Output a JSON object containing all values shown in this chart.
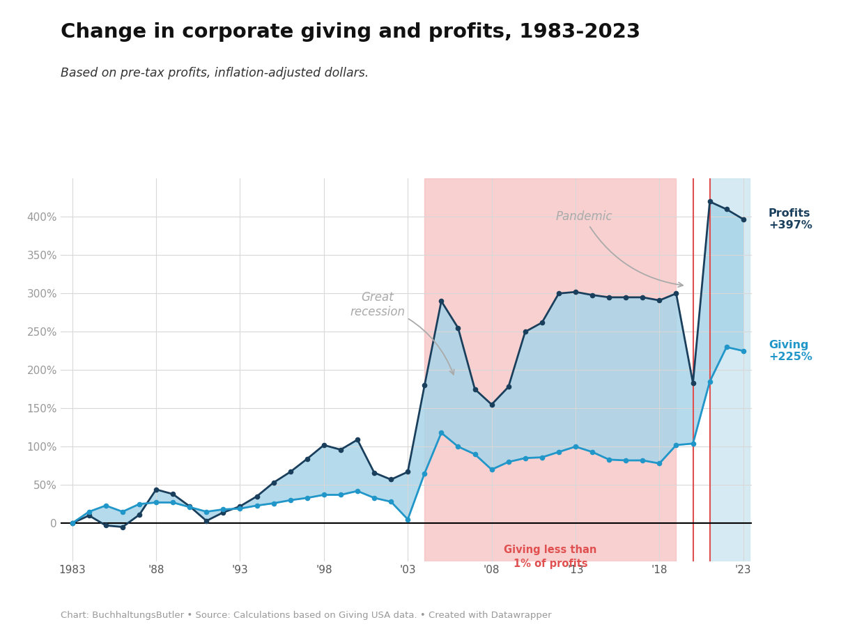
{
  "title": "Change in corporate giving and profits, 1983-2023",
  "subtitle": "Based on pre-tax profits, inflation-adjusted dollars.",
  "footer": "Chart: BuchhaltungsButler • Source: Calculations based on Giving USA data. • Created with Datawrapper",
  "years": [
    1983,
    1984,
    1985,
    1986,
    1987,
    1988,
    1989,
    1990,
    1991,
    1992,
    1993,
    1994,
    1995,
    1996,
    1997,
    1998,
    1999,
    2000,
    2001,
    2002,
    2003,
    2004,
    2005,
    2006,
    2007,
    2008,
    2009,
    2010,
    2011,
    2012,
    2013,
    2014,
    2015,
    2016,
    2017,
    2018,
    2019,
    2020,
    2021,
    2022,
    2023
  ],
  "profits": [
    0,
    10,
    -3,
    -5,
    11,
    44,
    38,
    22,
    3,
    14,
    22,
    35,
    53,
    67,
    84,
    102,
    96,
    109,
    66,
    57,
    67,
    180,
    290,
    255,
    175,
    155,
    178,
    250,
    262,
    300,
    302,
    298,
    295,
    295,
    295,
    291,
    300,
    183,
    420,
    410,
    397
  ],
  "giving": [
    0,
    15,
    23,
    15,
    25,
    27,
    27,
    21,
    15,
    18,
    19,
    23,
    26,
    30,
    33,
    37,
    37,
    42,
    33,
    28,
    5,
    65,
    118,
    100,
    90,
    70,
    80,
    85,
    86,
    93,
    100,
    93,
    83,
    82,
    82,
    78,
    102,
    104,
    185,
    230,
    225
  ],
  "pink_region_start": 2004,
  "pink_region_end": 2019,
  "red_line1": 2020,
  "red_line2": 2021,
  "blue_region_start": 2021,
  "blue_region_end": 2023.4,
  "profits_color": "#1a3f5c",
  "giving_color": "#2196c9",
  "fill_between_color": "#a8d4e8",
  "pink_bg_color": "#f5b8b8",
  "red_line_color": "#e05050",
  "blue_bg_color": "#c8e4f0",
  "profits_label": "Profits\n+397%",
  "giving_label": "Giving\n+225%",
  "ylim": [
    -50,
    450
  ],
  "yticks": [
    0,
    50,
    100,
    150,
    200,
    250,
    300,
    350,
    400
  ],
  "xtick_years": [
    1983,
    1988,
    1993,
    1998,
    2003,
    2008,
    2013,
    2018,
    2023
  ],
  "xtick_labels": [
    "1983",
    "'88",
    "'93",
    "'98",
    "'03",
    "'08",
    "'13",
    "'18",
    "'23"
  ],
  "bg_color": "#ffffff",
  "grid_color": "#d8d8d8"
}
